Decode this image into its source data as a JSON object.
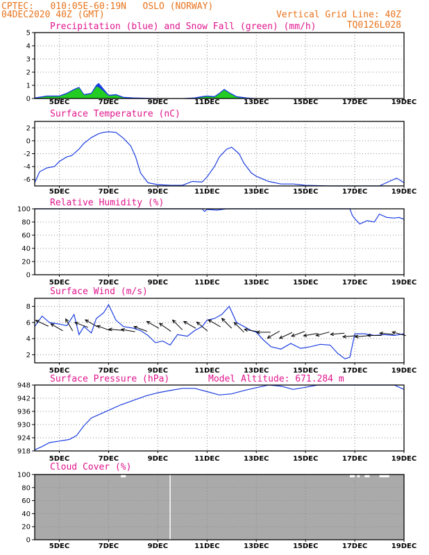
{
  "header": {
    "line1_left": "CPTEC:   010:05E-60:19N   OSLO (NORWAY)",
    "line2_left": "04DEC2020 40Z (GMT)",
    "line2_right": "Vertical Grid Line: 40Z",
    "line3_right": "TQ0126L028"
  },
  "colors": {
    "header": "#e8731c",
    "title": "#e0148c",
    "line": "#1a3ce0",
    "snow": "#22cc22",
    "cloud": "#aaaaaa"
  },
  "x_ticks": [
    "5DEC",
    "7DEC",
    "9DEC",
    "11DEC",
    "13DEC",
    "15DEC",
    "17DEC",
    "19DEC"
  ],
  "chart_data": [
    {
      "type": "area",
      "title": "Precipitation (blue) and Snow Fall (green) (mm/h)",
      "ylim": [
        0,
        5
      ],
      "yticks": [
        "0",
        "1",
        "2",
        "3",
        "4",
        "5"
      ],
      "x": [
        4.0,
        4.5,
        5.0,
        5.3,
        5.6,
        5.8,
        6.0,
        6.3,
        6.5,
        6.6,
        6.8,
        7.0,
        7.3,
        7.6,
        8.0,
        9.0,
        10.0,
        10.5,
        10.8,
        11.0,
        11.3,
        11.5,
        11.7,
        11.9,
        12.2,
        12.6,
        13.0,
        14.0,
        16.0,
        18.0,
        19.0
      ],
      "series": [
        {
          "name": "Precipitation",
          "values": [
            0.05,
            0.2,
            0.2,
            0.4,
            0.7,
            0.85,
            0.3,
            0.4,
            1.0,
            1.15,
            0.7,
            0.25,
            0.3,
            0.1,
            0.05,
            0.0,
            0.0,
            0.05,
            0.15,
            0.2,
            0.15,
            0.4,
            0.7,
            0.45,
            0.15,
            0.05,
            0.0,
            0.0,
            0.0,
            0.0,
            0.0
          ]
        },
        {
          "name": "Snow Fall",
          "values": [
            0.0,
            0.15,
            0.15,
            0.35,
            0.65,
            0.8,
            0.25,
            0.35,
            0.9,
            0.85,
            0.55,
            0.2,
            0.25,
            0.05,
            0.0,
            0.0,
            0.0,
            0.0,
            0.1,
            0.15,
            0.1,
            0.35,
            0.65,
            0.4,
            0.1,
            0.0,
            0.0,
            0.0,
            0.0,
            0.0,
            0.0
          ]
        }
      ]
    },
    {
      "type": "line",
      "title": "Surface Temperature (nC)",
      "ylim": [
        -7,
        3
      ],
      "yticks": [
        "2",
        "0",
        "-2",
        "-4",
        "-6"
      ],
      "x": [
        4.0,
        4.2,
        4.5,
        4.8,
        5.0,
        5.3,
        5.5,
        5.8,
        6.0,
        6.3,
        6.6,
        6.8,
        7.0,
        7.3,
        7.6,
        7.9,
        8.1,
        8.3,
        8.6,
        9.0,
        9.5,
        10.0,
        10.4,
        10.8,
        11.0,
        11.3,
        11.5,
        11.8,
        12.0,
        12.3,
        12.5,
        12.8,
        13.0,
        13.5,
        14.0,
        14.5,
        15.0,
        16.0,
        17.0,
        18.0,
        18.4,
        18.7,
        19.0
      ],
      "series": [
        {
          "name": "Surface Temperature",
          "values": [
            -6.5,
            -4.8,
            -4.2,
            -4.0,
            -3.2,
            -2.5,
            -2.3,
            -1.3,
            -0.4,
            0.5,
            1.1,
            1.3,
            1.4,
            1.3,
            0.4,
            -0.8,
            -2.5,
            -5.0,
            -6.5,
            -6.8,
            -6.9,
            -6.9,
            -6.3,
            -6.4,
            -5.6,
            -4.0,
            -2.5,
            -1.3,
            -1.0,
            -2.0,
            -3.5,
            -5.0,
            -5.5,
            -6.3,
            -6.7,
            -6.7,
            -6.9,
            -7.0,
            -7.0,
            -7.0,
            -6.3,
            -5.8,
            -6.5
          ]
        }
      ]
    },
    {
      "type": "line",
      "title": "Relative Humidity (%)",
      "ylim": [
        0,
        100
      ],
      "yticks": [
        "0",
        "20",
        "40",
        "60",
        "80",
        "100"
      ],
      "x": [
        4.0,
        10.8,
        10.9,
        11.0,
        11.4,
        11.8,
        12.0,
        16.8,
        16.9,
        17.0,
        17.2,
        17.5,
        17.8,
        18.0,
        18.3,
        18.6,
        18.8,
        19.0
      ],
      "series": [
        {
          "name": "Relative Humidity",
          "values": [
            100,
            100,
            96,
            99,
            98,
            100,
            100,
            100,
            90,
            85,
            77,
            82,
            80,
            92,
            87,
            86,
            87,
            84
          ]
        }
      ]
    },
    {
      "type": "line",
      "title": "Surface Wind (m/s)",
      "ylim": [
        1,
        9
      ],
      "yticks": [
        "2",
        "4",
        "6",
        "8"
      ],
      "x": [
        4.0,
        4.3,
        4.6,
        5.0,
        5.3,
        5.6,
        5.8,
        6.0,
        6.3,
        6.5,
        6.8,
        7.0,
        7.3,
        7.6,
        8.0,
        8.3,
        8.6,
        8.9,
        9.2,
        9.5,
        9.8,
        10.2,
        10.5,
        10.8,
        11.0,
        11.3,
        11.6,
        11.9,
        12.2,
        12.5,
        12.8,
        13.0,
        13.3,
        13.6,
        14.0,
        14.4,
        14.8,
        15.2,
        15.6,
        16.0,
        16.3,
        16.6,
        16.8,
        17.0,
        17.4,
        17.8,
        18.2,
        18.6,
        19.0
      ],
      "series": [
        {
          "name": "Surface Wind",
          "values": [
            5.5,
            6.8,
            6.0,
            5.8,
            5.6,
            7.0,
            4.5,
            5.5,
            4.7,
            6.5,
            7.2,
            8.2,
            6.3,
            5.5,
            5.3,
            5.0,
            4.4,
            3.5,
            3.7,
            3.2,
            4.5,
            4.3,
            5.0,
            5.5,
            6.3,
            6.5,
            7.0,
            8.0,
            6.0,
            5.5,
            5.0,
            4.8,
            3.8,
            3.0,
            2.7,
            3.4,
            2.8,
            3.0,
            3.3,
            3.2,
            2.2,
            1.5,
            1.7,
            4.6,
            4.6,
            4.4,
            4.5,
            4.4,
            4.6
          ]
        }
      ]
    },
    {
      "type": "line",
      "title": "Surface Pressure (hPa)",
      "annotation": "Model Altitude: 671.284 m",
      "ylim": [
        918,
        948
      ],
      "yticks": [
        "918",
        "924",
        "930",
        "936",
        "942",
        "948"
      ],
      "x": [
        4.0,
        4.3,
        4.6,
        5.0,
        5.4,
        5.7,
        6.0,
        6.3,
        6.6,
        7.0,
        7.5,
        8.0,
        8.5,
        9.0,
        9.5,
        10.0,
        10.5,
        11.0,
        11.5,
        12.0,
        12.5,
        13.0,
        13.5,
        14.0,
        14.5,
        15.0,
        15.5,
        18.6,
        19.0
      ],
      "series": [
        {
          "name": "Surface Pressure",
          "values": [
            918.5,
            920.0,
            921.8,
            922.5,
            923.2,
            925.0,
            929.5,
            933.0,
            934.5,
            936.5,
            939.0,
            941.0,
            943.0,
            944.5,
            945.5,
            946.5,
            946.5,
            945.0,
            943.5,
            944.0,
            945.5,
            946.8,
            948.0,
            947.5,
            946.0,
            947.0,
            948.0,
            948.0,
            946.0
          ]
        }
      ]
    },
    {
      "type": "area",
      "title": "Cloud Cover (%)",
      "ylim": [
        0,
        100
      ],
      "yticks": [
        "0",
        "20",
        "40",
        "60",
        "80",
        "100"
      ],
      "series": [
        {
          "name": "Cloud Cover",
          "values": [
            100
          ]
        }
      ]
    }
  ]
}
